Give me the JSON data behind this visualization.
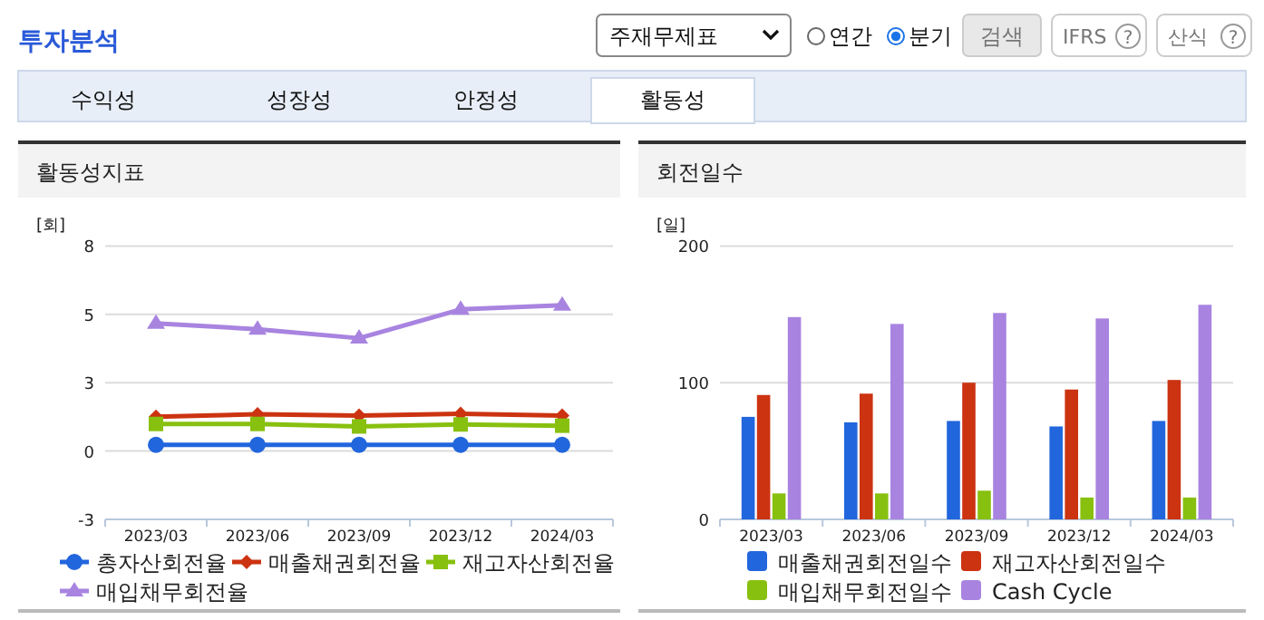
{
  "chart_data": [
    {
      "type": "line",
      "title": "활동성지표",
      "ylabel": "[회]",
      "annotations": [
        "투자분석",
        "주재무제표",
        "연간",
        "분기",
        "검색",
        "IFRS",
        "?",
        "산식",
        "?",
        "수익성",
        "성장성",
        "안정성",
        "활동성"
      ],
      "categories": [
        "2023/03",
        "2023/06",
        "2023/09",
        "2023/12",
        "2024/03"
      ],
      "ylim": [
        -3,
        8
      ],
      "yticks": [
        {
          "value": -3,
          "label": "-3"
        },
        {
          "value": -0.25,
          "label": "0"
        },
        {
          "value": 2.5,
          "label": "3"
        },
        {
          "value": 5.25,
          "label": "5"
        },
        8
      ],
      "grid": "y",
      "legend": "bottom",
      "series": [
        {
          "name": "총자산회전율",
          "color": "#2266dd",
          "marker": "circle",
          "values": [
            0.0,
            0.0,
            0.0,
            0.0,
            0.0
          ]
        },
        {
          "name": "매출채권회전율",
          "color": "#cc3311",
          "marker": "diamond",
          "values": [
            1.13,
            1.23,
            1.18,
            1.25,
            1.18
          ]
        },
        {
          "name": "재고자산회전율",
          "color": "#88c010",
          "marker": "square",
          "values": [
            0.84,
            0.84,
            0.74,
            0.82,
            0.77
          ]
        },
        {
          "name": "매입채무회전율",
          "color": "#a884e0",
          "marker": "triangle",
          "values": [
            4.89,
            4.65,
            4.29,
            5.45,
            5.62
          ]
        }
      ]
    },
    {
      "type": "bar",
      "title": "회전일수",
      "ylabel": "[일]",
      "categories": [
        "2023/03",
        "2023/06",
        "2023/09",
        "2023/12",
        "2024/03"
      ],
      "ylim": [
        0,
        200
      ],
      "yticks": [
        0,
        100,
        200
      ],
      "grid": "y",
      "legend": "bottom",
      "series": [
        {
          "name": "매출채권회전일수",
          "color": "#2266dd",
          "values": [
            75,
            71,
            72,
            68,
            72
          ]
        },
        {
          "name": "재고자산회전일수",
          "color": "#cc3311",
          "values": [
            91,
            92,
            100,
            95,
            102
          ]
        },
        {
          "name": "매입채무회전일수",
          "color": "#88c010",
          "values": [
            19,
            19,
            21,
            16,
            16
          ]
        },
        {
          "name": "Cash Cycle",
          "color": "#a884e0",
          "values": [
            148,
            143,
            151,
            147,
            157
          ]
        }
      ]
    }
  ]
}
